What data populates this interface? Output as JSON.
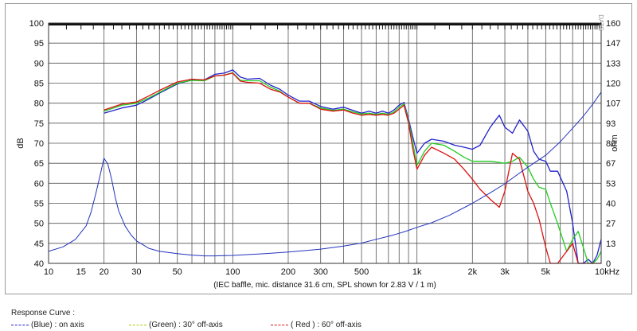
{
  "chart_data": {
    "type": "line",
    "xscale": "log",
    "xlim": [
      10,
      10000
    ],
    "ylim": [
      40,
      100
    ],
    "y2lim": [
      0,
      160
    ],
    "ylabel": "dB",
    "y2label": "ohm",
    "xlabel": "(IEC baffle, mic. distance 31.6 cm, SPL shown for 2.83 V / 1 m)",
    "watermark": "DATS",
    "x_tick_labels": [
      {
        "v": 10,
        "t": "10"
      },
      {
        "v": 15,
        "t": "15"
      },
      {
        "v": 20,
        "t": "20"
      },
      {
        "v": 30,
        "t": "30"
      },
      {
        "v": 50,
        "t": "50"
      },
      {
        "v": 100,
        "t": "100"
      },
      {
        "v": 200,
        "t": "200"
      },
      {
        "v": 300,
        "t": "300"
      },
      {
        "v": 500,
        "t": "500"
      },
      {
        "v": 1000,
        "t": "1k"
      },
      {
        "v": 2000,
        "t": "2k"
      },
      {
        "v": 3000,
        "t": "3k"
      },
      {
        "v": 5000,
        "t": "5k"
      },
      {
        "v": 10000,
        "t": "10kHz"
      }
    ],
    "y_ticks": [
      40,
      45,
      50,
      55,
      60,
      65,
      70,
      75,
      80,
      85,
      90,
      95,
      100
    ],
    "y2_ticks": [
      0,
      13,
      27,
      40,
      53,
      67,
      80,
      93,
      107,
      120,
      133,
      147,
      160
    ],
    "grid": true,
    "legend": {
      "title": "Response Curve :",
      "entries": [
        "(Blue) : on axis",
        "(Green) : 30° off-axis",
        "( Red ) : 60° off-axis"
      ]
    },
    "colors": {
      "blue": "#2222cc",
      "green": "#22cc22",
      "red": "#dd1111",
      "impedance": "#2233bb",
      "grid": "#555555"
    },
    "series": [
      {
        "axis": "left",
        "color": "#2222cc",
        "x": [
          20,
          25,
          30,
          35,
          40,
          50,
          60,
          70,
          80,
          90,
          100,
          110,
          120,
          140,
          160,
          180,
          200,
          230,
          260,
          300,
          350,
          400,
          450,
          500,
          550,
          600,
          650,
          700,
          750,
          800,
          850,
          900,
          950,
          1000,
          1100,
          1200,
          1400,
          1600,
          1800,
          2000,
          2200,
          2500,
          2800,
          3000,
          3300,
          3600,
          4000,
          4300,
          4600,
          5000,
          5300,
          5800,
          6500,
          7000,
          7500,
          8000,
          8500,
          9000,
          9500,
          10000
        ],
        "y": [
          77.5,
          78.8,
          79.5,
          81,
          82.5,
          84.8,
          85.8,
          85.8,
          87.2,
          87.5,
          88.3,
          86.5,
          86,
          86.2,
          84.5,
          83.5,
          82,
          80.5,
          80.5,
          79.2,
          78.5,
          79,
          78.2,
          77.5,
          78,
          77.5,
          78,
          77.5,
          78.3,
          79.5,
          80.2,
          76,
          71.5,
          67.5,
          70,
          71,
          70.5,
          69.5,
          69,
          68.5,
          69.5,
          74,
          77,
          74,
          72.5,
          75.8,
          73,
          68,
          66,
          65.5,
          63,
          63,
          58,
          50,
          40,
          40,
          41,
          40,
          42,
          46
        ]
      },
      {
        "axis": "left",
        "color": "#22cc22",
        "x": [
          20,
          25,
          30,
          35,
          40,
          50,
          60,
          70,
          80,
          90,
          100,
          110,
          120,
          140,
          160,
          180,
          200,
          230,
          260,
          300,
          350,
          400,
          450,
          500,
          550,
          600,
          650,
          700,
          750,
          800,
          850,
          900,
          950,
          1000,
          1100,
          1200,
          1400,
          1600,
          1800,
          2000,
          2200,
          2500,
          2800,
          3000,
          3300,
          3600,
          4000,
          4300,
          4600,
          5000,
          5300,
          5800,
          6500,
          7000,
          7500,
          8000,
          8500,
          9000,
          9500,
          10000
        ],
        "y": [
          78,
          79.5,
          80,
          81.3,
          82.7,
          85,
          85.7,
          85.6,
          86.8,
          87,
          87.6,
          85.7,
          85.6,
          85.6,
          84,
          83,
          81.5,
          80,
          80,
          78.8,
          78.2,
          78.5,
          77.8,
          77.3,
          77.5,
          77.2,
          77.5,
          77.2,
          77.8,
          79,
          79.8,
          75.5,
          70,
          64.5,
          68,
          70,
          69.5,
          68,
          66.5,
          65.5,
          65.5,
          65.5,
          65.2,
          65,
          65.5,
          66.5,
          64,
          61,
          59,
          58.5,
          55,
          50,
          43,
          46,
          48,
          44,
          40,
          40,
          41,
          43
        ]
      },
      {
        "axis": "left",
        "color": "#dd1111",
        "x": [
          20,
          25,
          30,
          35,
          40,
          50,
          60,
          70,
          80,
          90,
          100,
          110,
          120,
          140,
          160,
          180,
          200,
          230,
          260,
          300,
          350,
          400,
          450,
          500,
          550,
          600,
          650,
          700,
          750,
          800,
          850,
          900,
          950,
          1000,
          1100,
          1200,
          1400,
          1600,
          1800,
          2000,
          2200,
          2500,
          2800,
          3000,
          3300,
          3600,
          4000,
          4300,
          4600,
          5000,
          5300,
          5800,
          6500,
          7000,
          7500,
          8000,
          8500,
          9000,
          9500,
          10000
        ],
        "y": [
          78.3,
          79.8,
          80.3,
          81.8,
          83.2,
          85.3,
          86,
          85.8,
          86.8,
          87,
          87.5,
          85.5,
          85.2,
          85,
          83.5,
          82.8,
          81.5,
          80,
          80,
          78.5,
          78,
          78.3,
          77.5,
          77,
          77.2,
          77,
          77.2,
          77,
          77.5,
          78.5,
          79.5,
          75,
          68.5,
          63.5,
          67,
          69,
          67.5,
          66,
          63.5,
          61,
          58.5,
          56,
          54,
          58,
          67.5,
          66,
          58,
          55,
          51,
          44,
          40,
          40,
          43,
          45,
          40,
          40,
          40,
          40,
          40,
          40
        ]
      },
      {
        "axis": "right",
        "color": "#2233bb",
        "x": [
          10,
          12,
          14,
          16,
          17,
          18,
          19,
          20,
          21,
          22,
          23,
          24,
          26,
          28,
          30,
          35,
          40,
          50,
          60,
          70,
          80,
          100,
          150,
          200,
          300,
          400,
          500,
          600,
          700,
          800,
          900,
          1000,
          1200,
          1500,
          2000,
          2500,
          3000,
          3500,
          4000,
          5000,
          6000,
          7000,
          8000,
          9000,
          10000
        ],
        "y": [
          8,
          11,
          16,
          25,
          34,
          46,
          58,
          70,
          66,
          56,
          44,
          35,
          25,
          19,
          15,
          10,
          8,
          6.5,
          5.5,
          5,
          5,
          5.3,
          6.5,
          7.5,
          9.5,
          11.5,
          13.5,
          16,
          18,
          20,
          22,
          24,
          27,
          32,
          40,
          47,
          53,
          59,
          64,
          72,
          81,
          90,
          98,
          106,
          114
        ]
      }
    ]
  }
}
